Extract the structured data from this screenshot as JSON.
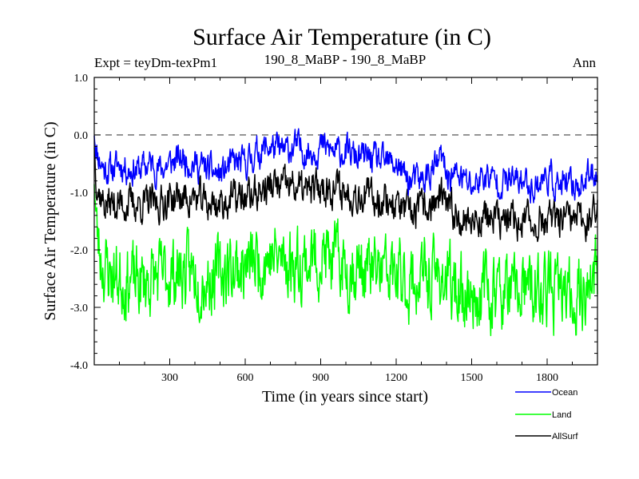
{
  "chart_data": {
    "type": "line",
    "title": "Surface Air Temperature (in C)",
    "experiment_label": "Expt = teyDm-texPm1",
    "comparison_label": "190_8_MaBP - 190_8_MaBP",
    "period_label": "Ann",
    "xlabel": "Time (in years since start)",
    "ylabel": "Surface Air Temperature (in C)",
    "xlim": [
      0,
      2000
    ],
    "ylim": [
      -4.0,
      1.0
    ],
    "xticks": [
      300,
      600,
      900,
      1200,
      1500,
      1800
    ],
    "xtick_labels": [
      "300",
      "600",
      "900",
      "1200",
      "1500",
      "1800"
    ],
    "yticks": [
      1.0,
      0.0,
      -1.0,
      -2.0,
      -3.0,
      -4.0
    ],
    "ytick_labels": [
      "1.0",
      "0.0",
      "-1.0",
      "-2.0",
      "-3.0",
      "-4.0"
    ],
    "reference_line": 0.0,
    "legend_position": "bottom-right",
    "series": [
      {
        "name": "Ocean",
        "color": "#0000ff",
        "x": [
          0,
          5,
          10,
          20,
          40,
          70,
          100,
          140,
          180,
          220,
          260,
          300,
          350,
          400,
          450,
          500,
          550,
          600,
          650,
          700,
          750,
          800,
          850,
          900,
          950,
          1000,
          1050,
          1100,
          1150,
          1200,
          1250,
          1300,
          1350,
          1380,
          1400,
          1450,
          1500,
          1550,
          1600,
          1650,
          1700,
          1750,
          1800,
          1850,
          1900,
          1950,
          2000
        ],
        "mean": [
          0.1,
          -0.1,
          -0.3,
          -0.4,
          -0.6,
          -0.6,
          -0.5,
          -0.6,
          -0.6,
          -0.5,
          -0.6,
          -0.5,
          -0.4,
          -0.5,
          -0.6,
          -0.7,
          -0.5,
          -0.5,
          -0.3,
          -0.2,
          -0.3,
          -0.2,
          -0.3,
          -0.2,
          -0.3,
          -0.3,
          -0.4,
          -0.4,
          -0.5,
          -0.5,
          -0.8,
          -0.8,
          -0.6,
          -0.4,
          -0.7,
          -0.7,
          -0.9,
          -0.7,
          -0.8,
          -0.8,
          -0.8,
          -0.9,
          -0.7,
          -0.9,
          -0.9,
          -0.8,
          -0.6
        ],
        "amplitude": 0.3
      },
      {
        "name": "Land",
        "color": "#00ff00",
        "x": [
          0,
          5,
          10,
          20,
          40,
          70,
          100,
          140,
          180,
          220,
          260,
          300,
          350,
          400,
          450,
          500,
          550,
          600,
          650,
          700,
          750,
          800,
          850,
          900,
          950,
          1000,
          1050,
          1100,
          1150,
          1200,
          1250,
          1300,
          1350,
          1380,
          1400,
          1450,
          1500,
          1550,
          1600,
          1650,
          1700,
          1750,
          1800,
          1850,
          1900,
          1950,
          2000
        ],
        "mean": [
          -0.6,
          -1.2,
          -1.7,
          -2.0,
          -2.3,
          -2.4,
          -2.5,
          -2.5,
          -2.6,
          -2.5,
          -2.5,
          -2.4,
          -2.4,
          -2.4,
          -2.5,
          -2.4,
          -2.3,
          -2.3,
          -2.2,
          -2.1,
          -2.2,
          -2.2,
          -2.2,
          -2.1,
          -2.2,
          -2.3,
          -2.3,
          -2.4,
          -2.4,
          -2.5,
          -2.6,
          -2.5,
          -2.5,
          -2.4,
          -2.6,
          -2.7,
          -2.8,
          -2.7,
          -2.7,
          -2.8,
          -2.7,
          -2.8,
          -2.7,
          -2.8,
          -2.8,
          -2.7,
          -2.4
        ],
        "amplitude": 0.7
      },
      {
        "name": "AllSurf",
        "color": "#000000",
        "x": [
          0,
          5,
          10,
          20,
          40,
          70,
          100,
          140,
          180,
          220,
          260,
          300,
          350,
          400,
          450,
          500,
          550,
          600,
          650,
          700,
          750,
          800,
          850,
          900,
          950,
          1000,
          1050,
          1100,
          1150,
          1200,
          1250,
          1300,
          1350,
          1380,
          1400,
          1450,
          1500,
          1550,
          1600,
          1650,
          1700,
          1750,
          1800,
          1850,
          1900,
          1950,
          2000
        ],
        "mean": [
          -0.1,
          -0.5,
          -0.8,
          -1.0,
          -1.2,
          -1.2,
          -1.2,
          -1.2,
          -1.2,
          -1.2,
          -1.2,
          -1.1,
          -1.1,
          -1.1,
          -1.2,
          -1.2,
          -1.1,
          -1.1,
          -1.0,
          -0.9,
          -0.9,
          -0.9,
          -1.0,
          -0.9,
          -0.9,
          -1.0,
          -1.0,
          -1.1,
          -1.1,
          -1.2,
          -1.4,
          -1.3,
          -1.2,
          -1.1,
          -1.3,
          -1.4,
          -1.5,
          -1.4,
          -1.5,
          -1.5,
          -1.5,
          -1.5,
          -1.5,
          -1.5,
          -1.5,
          -1.5,
          -1.3
        ],
        "amplitude": 0.35
      }
    ]
  }
}
